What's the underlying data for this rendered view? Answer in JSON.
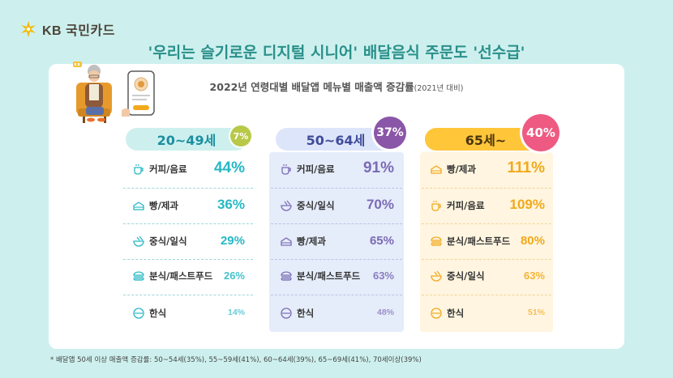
{
  "brand": {
    "logo_text": "KB 국민카드"
  },
  "headline": "'우리는 슬기로운 디지털 시니어' 배달음식 주문도 '선수급'",
  "subtitle": {
    "main": "2022년 연령대별 배달앱 메뉴별 매출액 증감률",
    "note": "(2021년 대비)"
  },
  "colors": {
    "group1": "#26b8c4",
    "group2": "#7b6bb5",
    "group3": "#f2a91b",
    "badge1": "#b8c94a",
    "badge2": "#8a56a8",
    "badge3": "#ee5a82"
  },
  "chart_data": {
    "type": "table",
    "title": "2022년 연령대별 배달앱 메뉴별 매출액 증감률 (2021년 대비)",
    "groups": [
      {
        "name": "20~49세",
        "total": "7%",
        "rows": [
          {
            "menu": "커피/음료",
            "icon": "cup-icon",
            "value": 44,
            "label": "44%"
          },
          {
            "menu": "빵/제과",
            "icon": "cake-icon",
            "value": 36,
            "label": "36%"
          },
          {
            "menu": "중식/일식",
            "icon": "bowl-icon",
            "value": 29,
            "label": "29%"
          },
          {
            "menu": "분식/패스트푸드",
            "icon": "burger-icon",
            "value": 26,
            "label": "26%"
          },
          {
            "menu": "한식",
            "icon": "plate-icon",
            "value": 14,
            "label": "14%"
          }
        ]
      },
      {
        "name": "50~64세",
        "total": "37%",
        "rows": [
          {
            "menu": "커피/음료",
            "icon": "cup-icon",
            "value": 91,
            "label": "91%"
          },
          {
            "menu": "중식/일식",
            "icon": "bowl-icon",
            "value": 70,
            "label": "70%"
          },
          {
            "menu": "빵/제과",
            "icon": "cake-icon",
            "value": 65,
            "label": "65%"
          },
          {
            "menu": "분식/패스트푸드",
            "icon": "burger-icon",
            "value": 63,
            "label": "63%"
          },
          {
            "menu": "한식",
            "icon": "plate-icon",
            "value": 48,
            "label": "48%"
          }
        ]
      },
      {
        "name": "65세~",
        "total": "40%",
        "rows": [
          {
            "menu": "빵/제과",
            "icon": "cake-icon",
            "value": 111,
            "label": "111%"
          },
          {
            "menu": "커피/음료",
            "icon": "cup-icon",
            "value": 109,
            "label": "109%"
          },
          {
            "menu": "분식/패스트푸드",
            "icon": "burger-icon",
            "value": 80,
            "label": "80%"
          },
          {
            "menu": "중식/일식",
            "icon": "bowl-icon",
            "value": 63,
            "label": "63%"
          },
          {
            "menu": "한식",
            "icon": "plate-icon",
            "value": 51,
            "label": "51%"
          }
        ]
      }
    ]
  },
  "footnote": "* 배달앱 50세 이상 매출액 증감률: 50~54세(35%), 55~59세(41%), 60~64세(39%), 65~69세(41%), 70세이상(39%)"
}
